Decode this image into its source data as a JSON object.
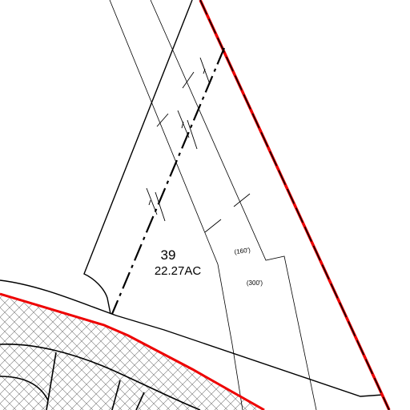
{
  "parcel": {
    "number": "39",
    "area": "22.27AC"
  },
  "dimensions": [
    "(160')",
    "(300')"
  ]
}
